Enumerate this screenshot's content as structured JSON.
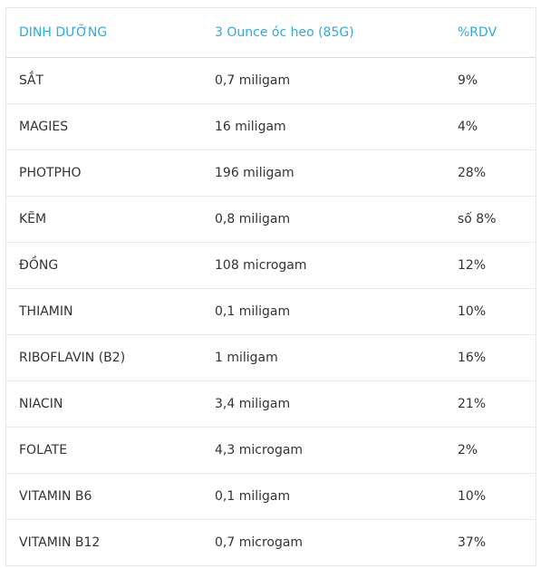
{
  "table": {
    "headers": [
      "DINH DƯỠNG",
      "3 Ounce óc heo (85G)",
      "%RDV"
    ],
    "rows": [
      [
        "SẮT",
        "0,7 miligam",
        "9%"
      ],
      [
        "MAGIES",
        "16 miligam",
        "4%"
      ],
      [
        "PHOTPHO",
        "196 miligam",
        "28%"
      ],
      [
        "KẼM",
        "0,8 miligam",
        "số 8%"
      ],
      [
        "ĐỒNG",
        "108 microgam",
        "12%"
      ],
      [
        "THIAMIN",
        "0,1 miligam",
        "10%"
      ],
      [
        "RIBOFLAVIN (B2)",
        "1 miligam",
        "16%"
      ],
      [
        "NIACIN",
        "3,4 miligam",
        "21%"
      ],
      [
        "FOLATE",
        "4,3 microgam",
        "2%"
      ],
      [
        "VITAMIN B6",
        "0,1 miligam",
        "10%"
      ],
      [
        "VITAMIN B12",
        "0,7 microgam",
        "37%"
      ]
    ]
  },
  "colors": {
    "header_text": "#2fa9df",
    "body_text": "#333333",
    "border": "#e6e6e6"
  }
}
